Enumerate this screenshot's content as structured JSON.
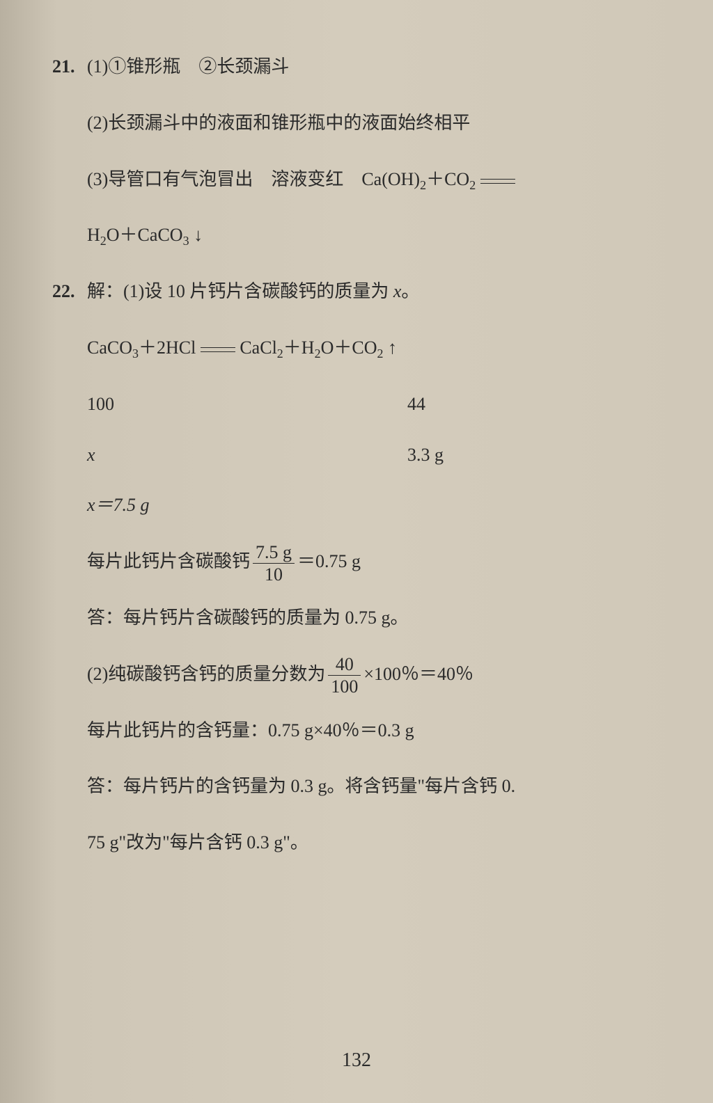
{
  "q21": {
    "num": "21.",
    "part1": "(1)①锥形瓶　②长颈漏斗",
    "part2": "(2)长颈漏斗中的液面和锥形瓶中的液面始终相平",
    "part3a": "(3)导管口有气泡冒出　溶液变红　Ca(OH)",
    "part3a_sub": "2",
    "part3a_plus": "＋CO",
    "part3a_sub2": "2",
    "part3b_h2o": "H",
    "part3b_h2o_sub": "2",
    "part3b_o": "O＋CaCO",
    "part3b_caco3_sub": "3"
  },
  "q22": {
    "num": "22.",
    "intro": "解：(1)设 10 片钙片含碳酸钙的质量为 ",
    "var_x": "x",
    "period": "。",
    "eq_caco3": "CaCO",
    "eq_caco3_sub": "3",
    "eq_hcl": "＋2HCl",
    "eq_cacl2": "CaCl",
    "eq_cacl2_sub": "2",
    "eq_h2o": "＋H",
    "eq_h2o_sub": "2",
    "eq_co2": "O＋CO",
    "eq_co2_sub": "2",
    "ratio_100": "100",
    "ratio_44": "44",
    "ratio_x": "x",
    "ratio_33": "3.3 g",
    "x_result": "x＝7.5 g",
    "per_tablet_pre": "每片此钙片含碳酸钙",
    "frac1_num": "7.5 g",
    "frac1_den": "10",
    "per_tablet_post": "＝0.75 g",
    "answer1": "答：每片钙片含碳酸钙的质量为 0.75 g。",
    "part2_pre": "(2)纯碳酸钙含钙的质量分数为",
    "frac2_num": "40",
    "frac2_den": "100",
    "part2_post": "×100％＝40％",
    "ca_content": "每片此钙片的含钙量：0.75 g×40％＝0.3 g",
    "answer2a": "答：每片钙片的含钙量为 0.3 g。将含钙量\"每片含钙 0.",
    "answer2b": "75 g\"改为\"每片含钙 0.3 g\"。"
  },
  "page_number": "132"
}
